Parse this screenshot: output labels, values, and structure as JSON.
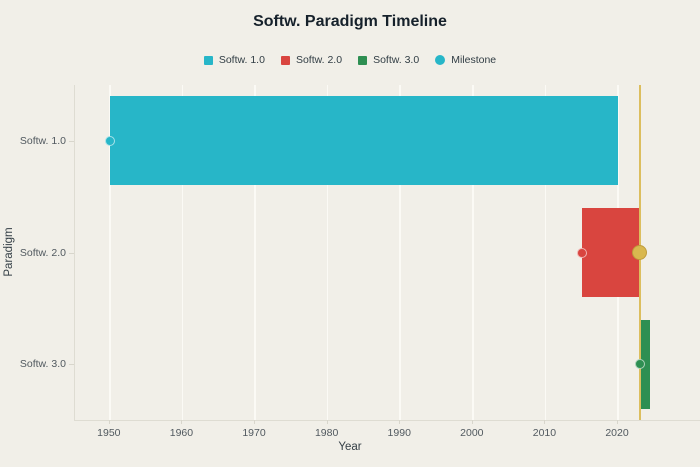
{
  "chart_data": {
    "type": "bar",
    "variant": "horizontal-gantt-timeline",
    "title": "Softw. Paradigm Timeline",
    "xlabel": "Year",
    "ylabel": "Paradigm",
    "categories": [
      "Softw. 1.0",
      "Softw. 2.0",
      "Softw. 3.0"
    ],
    "xlim": [
      1945.2,
      2030.6
    ],
    "xticks": [
      1950,
      1960,
      1970,
      1980,
      1990,
      2000,
      2010,
      2020
    ],
    "grid": "vertical-only",
    "legend_position": "top-center",
    "series": [
      {
        "name": "Softw. 1.0",
        "category": "Softw. 1.0",
        "start": 1950,
        "end": 2020,
        "color": "#27b6c8"
      },
      {
        "name": "Softw. 2.0",
        "category": "Softw. 2.0",
        "start": 2015,
        "end": 2023,
        "color": "#d9453f"
      },
      {
        "name": "Softw. 3.0",
        "category": "Softw. 3.0",
        "start": 2023,
        "end": 2024.4,
        "color": "#2e8f52"
      }
    ],
    "milestones": [
      {
        "category": "Softw. 1.0",
        "year": 1950,
        "color": "#27b6c8"
      },
      {
        "category": "Softw. 2.0",
        "year": 2015,
        "color": "#d9453f"
      },
      {
        "category": "Softw. 3.0",
        "year": 2023,
        "color": "#2e8f52"
      }
    ],
    "highlight_line": {
      "year": 2023,
      "color": "#dcbe5e"
    },
    "highlight_marker": {
      "category": "Softw. 2.0",
      "year": 2023,
      "color": "#d9b84f"
    },
    "legend": [
      {
        "label": "Softw. 1.0",
        "swatch": "square",
        "color": "#27b6c8"
      },
      {
        "label": "Softw. 2.0",
        "swatch": "square",
        "color": "#d9453f"
      },
      {
        "label": "Softw. 3.0",
        "swatch": "square",
        "color": "#2e8f52"
      },
      {
        "label": "Milestone",
        "swatch": "circle",
        "color": "#27b6c8"
      }
    ],
    "colors": {
      "background": "#f1efe8",
      "grid": "#fbfaf5",
      "axis_line": "#dedcd2",
      "title_text": "#16212b",
      "tick_text": "#51595f",
      "axis_title_text": "#343f46"
    }
  }
}
